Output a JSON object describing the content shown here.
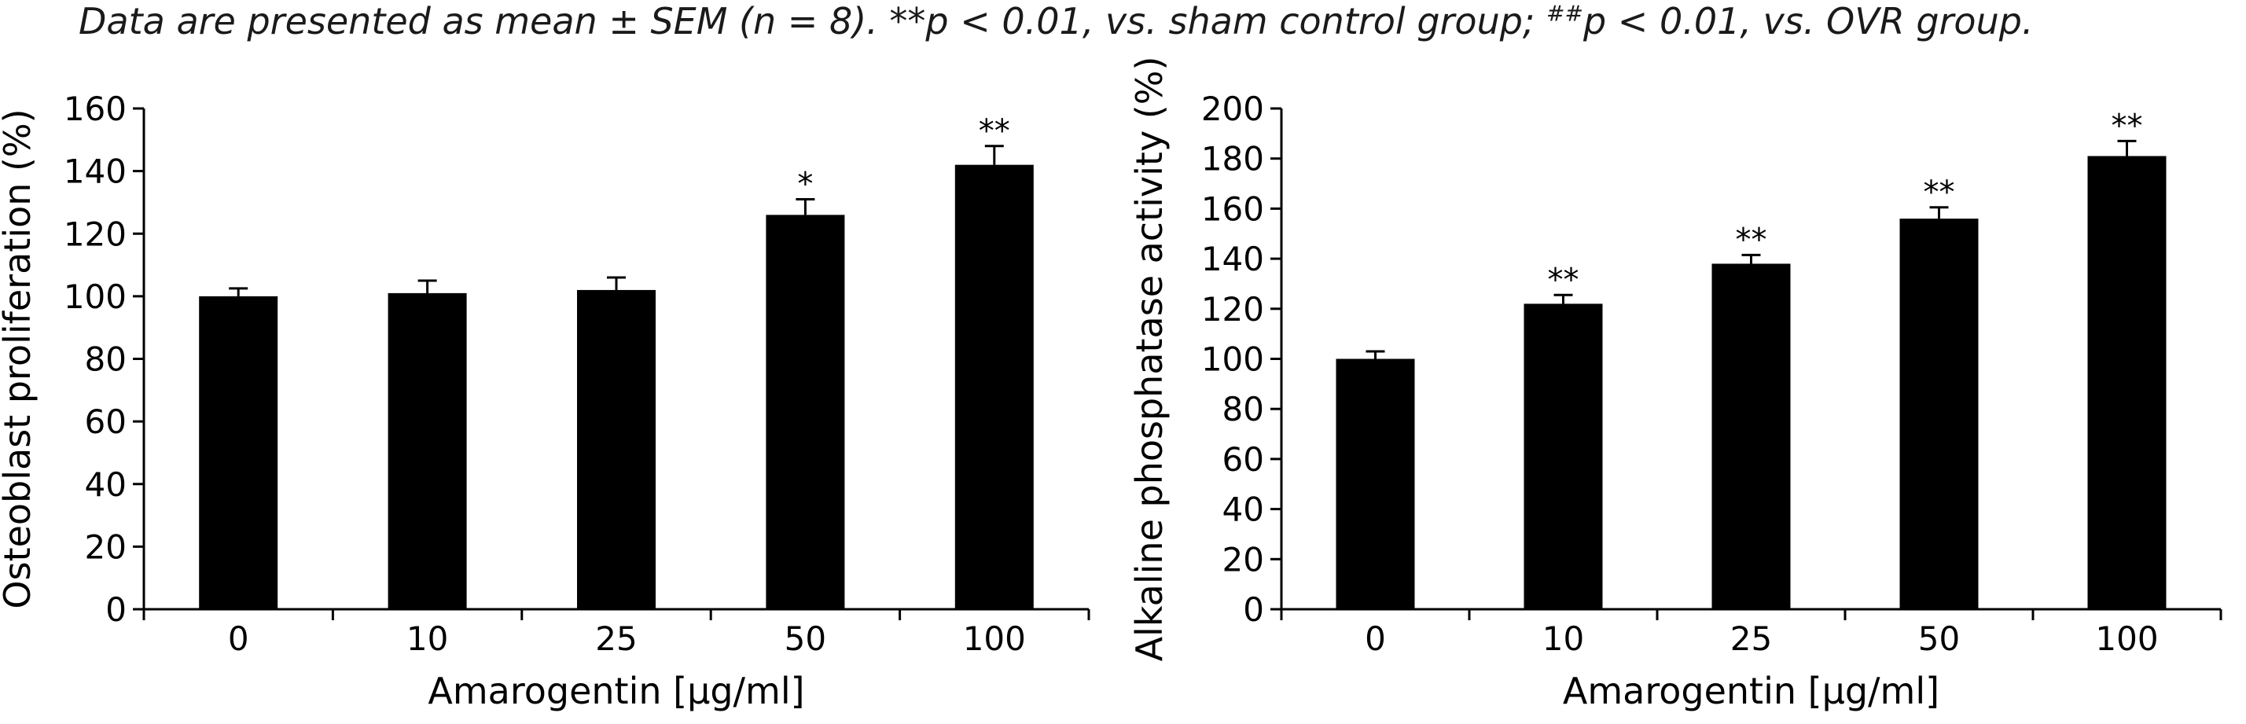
{
  "caption": {
    "parts": [
      {
        "t": "Data are presented as mean ± SEM (n = 8). **p < 0.01, vs. sham control group; "
      },
      {
        "t": "##",
        "sup": true
      },
      {
        "t": "p < 0.01, vs. OVR group."
      }
    ]
  },
  "chart_data": [
    {
      "type": "bar",
      "categories": [
        "0",
        "10",
        "25",
        "50",
        "100"
      ],
      "values": [
        100,
        101,
        102,
        126,
        142
      ],
      "errors": [
        2.5,
        4,
        4,
        5,
        6
      ],
      "significance": [
        "",
        "",
        "",
        "*",
        "**"
      ],
      "xlabel": "Amarogentin [µg/ml]",
      "ylabel": "Osteoblast proliferation (%)",
      "ylim": [
        0,
        160
      ],
      "yticks": [
        0,
        20,
        40,
        60,
        80,
        100,
        120,
        140,
        160
      ],
      "grid": false,
      "bar_color": "#000000"
    },
    {
      "type": "bar",
      "categories": [
        "0",
        "10",
        "25",
        "50",
        "100"
      ],
      "values": [
        100,
        122,
        138,
        156,
        181
      ],
      "errors": [
        3,
        3.5,
        3.5,
        4.5,
        6
      ],
      "significance": [
        "",
        "**",
        "**",
        "**",
        "**"
      ],
      "xlabel": "Amarogentin [µg/ml]",
      "ylabel": "Alkaline phosphatase activity (%)",
      "ylim": [
        0,
        200
      ],
      "yticks": [
        0,
        20,
        40,
        60,
        80,
        100,
        120,
        140,
        160,
        180,
        200
      ],
      "grid": false,
      "bar_color": "#000000"
    }
  ]
}
